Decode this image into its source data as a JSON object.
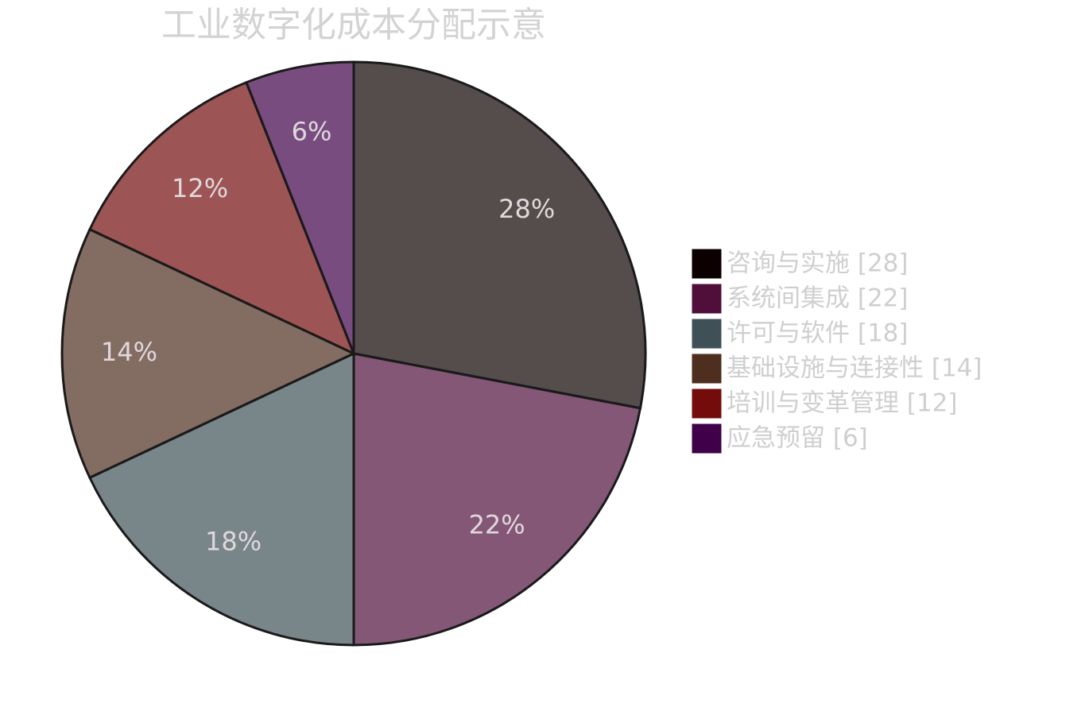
{
  "chart_data": {
    "type": "pie",
    "title": "工业数字化成本分配示意",
    "categories": [
      "咨询与实施",
      "系统间集成",
      "许可与软件",
      "基础设施与连接性",
      "培训与变革管理",
      "应急预留"
    ],
    "values": [
      28,
      22,
      18,
      14,
      12,
      6
    ],
    "value_labels": [
      "28%",
      "22%",
      "18%",
      "14%",
      "12%",
      "6%"
    ],
    "legend_labels": [
      "咨询与实施 [28]",
      "系统间集成 [22]",
      "许可与软件 [18]",
      "基础设施与连接性 [14]",
      "培训与变革管理 [12]",
      "应急预留 [6]"
    ],
    "colors": [
      "#0d0000",
      "#4f0f3a",
      "#3f5157",
      "#4e2e1f",
      "#740c0c",
      "#40004a"
    ],
    "legend": "right"
  }
}
